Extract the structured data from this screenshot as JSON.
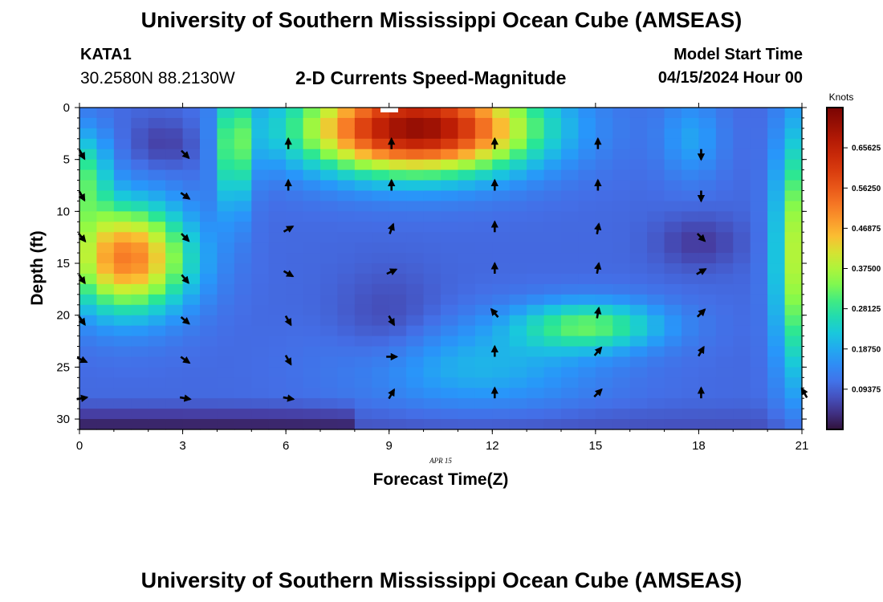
{
  "header": {
    "title": "University of Southern Mississippi Ocean Cube (AMSEAS)",
    "station": "KATA1",
    "coords": "30.2580N  88.2130W",
    "product": "2-D Currents Speed-Magnitude",
    "model_start_label": "Model Start Time",
    "model_start_value": "04/15/2024 Hour 00"
  },
  "footer": {
    "title": "University of Southern Mississippi Ocean Cube (AMSEAS)"
  },
  "chart_data": {
    "type": "heatmap",
    "title": "2-D Currents Speed-Magnitude",
    "xlabel": "Forecast Time(Z)",
    "ylabel": "Depth (ft)",
    "date_label": "APR 15",
    "xlim": [
      0,
      21
    ],
    "ylim": [
      31,
      0
    ],
    "xticks": [
      0,
      3,
      6,
      9,
      12,
      15,
      18,
      21
    ],
    "yticks": [
      0,
      5,
      10,
      15,
      20,
      25,
      30
    ],
    "colorbar": {
      "unit": "Knots",
      "range": [
        0,
        0.75
      ],
      "ticks": [
        "0.09375",
        "0.18750",
        "0.28125",
        "0.37500",
        "0.46875",
        "0.56250",
        "0.65625"
      ],
      "tick_values": [
        0.09375,
        0.1875,
        0.28125,
        0.375,
        0.46875,
        0.5625,
        0.65625
      ]
    },
    "arrows": [
      {
        "t": 0,
        "depth": 4.5,
        "dir": 150
      },
      {
        "t": 0,
        "depth": 8.5,
        "dir": 150
      },
      {
        "t": 0,
        "depth": 12.5,
        "dir": 140
      },
      {
        "t": 0,
        "depth": 16.5,
        "dir": 145
      },
      {
        "t": 0,
        "depth": 20.5,
        "dir": 145
      },
      {
        "t": 0,
        "depth": 24.3,
        "dir": 115
      },
      {
        "t": 0,
        "depth": 28,
        "dir": 80
      },
      {
        "t": 3,
        "depth": 4.5,
        "dir": 135
      },
      {
        "t": 3,
        "depth": 8.5,
        "dir": 125
      },
      {
        "t": 3,
        "depth": 12.5,
        "dir": 135
      },
      {
        "t": 3,
        "depth": 16.5,
        "dir": 140
      },
      {
        "t": 3,
        "depth": 20.5,
        "dir": 130
      },
      {
        "t": 3,
        "depth": 24.3,
        "dir": 125
      },
      {
        "t": 3,
        "depth": 28,
        "dir": 100
      },
      {
        "t": 6,
        "depth": 3.5,
        "dir": 0
      },
      {
        "t": 6,
        "depth": 7.5,
        "dir": 0
      },
      {
        "t": 6,
        "depth": 11.7,
        "dir": 60
      },
      {
        "t": 6,
        "depth": 16,
        "dir": 120
      },
      {
        "t": 6,
        "depth": 20.5,
        "dir": 150
      },
      {
        "t": 6,
        "depth": 24.3,
        "dir": 150
      },
      {
        "t": 6,
        "depth": 28,
        "dir": 100
      },
      {
        "t": 9,
        "depth": 3.5,
        "dir": 0
      },
      {
        "t": 9,
        "depth": 7.5,
        "dir": 0
      },
      {
        "t": 9,
        "depth": 11.7,
        "dir": 20
      },
      {
        "t": 9,
        "depth": 15.8,
        "dir": 65
      },
      {
        "t": 9,
        "depth": 20.5,
        "dir": 150
      },
      {
        "t": 9,
        "depth": 24,
        "dir": 90
      },
      {
        "t": 9,
        "depth": 27.6,
        "dir": 30
      },
      {
        "t": 12,
        "depth": 3.5,
        "dir": 0
      },
      {
        "t": 12,
        "depth": 7.5,
        "dir": 0
      },
      {
        "t": 12,
        "depth": 11.5,
        "dir": 0
      },
      {
        "t": 12,
        "depth": 15.5,
        "dir": 0
      },
      {
        "t": 12,
        "depth": 19.8,
        "dir": 320
      },
      {
        "t": 12,
        "depth": 23.5,
        "dir": 0
      },
      {
        "t": 12,
        "depth": 27.5,
        "dir": 0
      },
      {
        "t": 15,
        "depth": 3.5,
        "dir": 0
      },
      {
        "t": 15,
        "depth": 7.5,
        "dir": 0
      },
      {
        "t": 15,
        "depth": 11.7,
        "dir": 10
      },
      {
        "t": 15,
        "depth": 15.5,
        "dir": 10
      },
      {
        "t": 15,
        "depth": 19.8,
        "dir": 10
      },
      {
        "t": 15,
        "depth": 23.5,
        "dir": 40
      },
      {
        "t": 15,
        "depth": 27.5,
        "dir": 45
      },
      {
        "t": 18,
        "depth": 4.5,
        "dir": 180
      },
      {
        "t": 18,
        "depth": 8.5,
        "dir": 180
      },
      {
        "t": 18,
        "depth": 12.5,
        "dir": 135
      },
      {
        "t": 18,
        "depth": 15.8,
        "dir": 60
      },
      {
        "t": 18,
        "depth": 19.8,
        "dir": 45
      },
      {
        "t": 18,
        "depth": 23.5,
        "dir": 30
      },
      {
        "t": 18,
        "depth": 27.5,
        "dir": 0
      },
      {
        "t": 21,
        "depth": 27.5,
        "dir": 330
      }
    ]
  }
}
